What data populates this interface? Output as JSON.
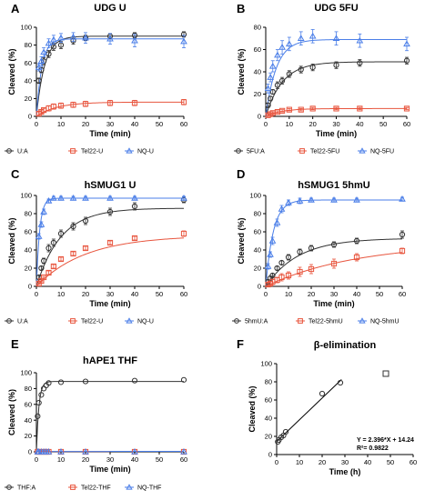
{
  "figure": {
    "panels": [
      {
        "letter": "A",
        "title": "UDG U",
        "xlabel": "Time (min)",
        "ylabel": "Cleaved (%)"
      },
      {
        "letter": "B",
        "title": "UDG 5FU",
        "xlabel": "Time (min)",
        "ylabel": "Cleaved (%)"
      },
      {
        "letter": "C",
        "title": "hSMUG1 U",
        "xlabel": "Time (min)",
        "ylabel": "Cleaved (%)"
      },
      {
        "letter": "D",
        "title": "hSMUG1 5hmU",
        "xlabel": "Time (min)",
        "ylabel": "Cleaved (%)"
      },
      {
        "letter": "E",
        "title": "hAPE1 THF",
        "xlabel": "Time (min)",
        "ylabel": "Cleaved (%)"
      },
      {
        "letter": "F",
        "title": "β-elimination",
        "xlabel": "Time (h)",
        "ylabel": "Cleaved (%)"
      }
    ]
  },
  "colors": {
    "black": "#333333",
    "red": "#e8553e",
    "blue": "#4a7ee8"
  },
  "chart_data": [
    {
      "panel": "A",
      "type": "scatter",
      "title": "UDG U",
      "xlabel": "Time (min)",
      "ylabel": "Cleaved (%)",
      "xlim": [
        0,
        60
      ],
      "ylim": [
        0,
        100
      ],
      "xticks": [
        0,
        10,
        20,
        30,
        40,
        50,
        60
      ],
      "yticks": [
        0,
        20,
        40,
        60,
        80,
        100
      ],
      "series": [
        {
          "name": "U:A",
          "marker": "circle",
          "color": "#333333",
          "x": [
            1,
            2,
            3,
            5,
            7,
            10,
            15,
            20,
            30,
            40,
            60
          ],
          "y": [
            40,
            52,
            62,
            70,
            78,
            80,
            85,
            88,
            90,
            91,
            92
          ],
          "err": [
            3,
            3,
            4,
            4,
            4,
            4,
            4,
            3,
            3,
            3,
            3
          ],
          "fit": {
            "plateau": 90,
            "k": 0.3
          }
        },
        {
          "name": "Tel22-U",
          "marker": "square",
          "color": "#e8553e",
          "x": [
            1,
            2,
            3,
            5,
            7,
            10,
            15,
            20,
            30,
            40,
            60
          ],
          "y": [
            3,
            5,
            7,
            9,
            11,
            12,
            13,
            14,
            15,
            15,
            16
          ],
          "err": [
            2,
            2,
            2,
            3,
            3,
            3,
            3,
            3,
            3,
            3,
            3
          ],
          "fit": {
            "plateau": 16,
            "k": 0.12
          }
        },
        {
          "name": "NQ-U",
          "marker": "triangle",
          "color": "#4a7ee8",
          "x": [
            1,
            2,
            3,
            5,
            7,
            10,
            15,
            20,
            30,
            40,
            60
          ],
          "y": [
            55,
            62,
            72,
            82,
            86,
            88,
            89,
            88,
            87,
            85,
            84
          ],
          "err": [
            4,
            5,
            5,
            5,
            5,
            5,
            5,
            6,
            6,
            7,
            7
          ],
          "fit": {
            "plateau": 87,
            "k": 0.45
          }
        }
      ],
      "legend": [
        "U:A",
        "Tel22-U",
        "NQ-U"
      ]
    },
    {
      "panel": "B",
      "type": "scatter",
      "title": "UDG 5FU",
      "xlabel": "Time (min)",
      "ylabel": "Cleaved (%)",
      "xlim": [
        0,
        60
      ],
      "ylim": [
        0,
        80
      ],
      "xticks": [
        0,
        10,
        20,
        30,
        40,
        50,
        60
      ],
      "yticks": [
        0,
        20,
        40,
        60,
        80
      ],
      "series": [
        {
          "name": "5FU:A",
          "marker": "circle",
          "color": "#333333",
          "x": [
            1,
            2,
            3,
            5,
            7,
            10,
            15,
            20,
            30,
            40,
            60
          ],
          "y": [
            10,
            16,
            22,
            28,
            32,
            38,
            42,
            44,
            46,
            48,
            50
          ],
          "err": [
            2,
            2,
            2,
            3,
            3,
            3,
            3,
            3,
            3,
            3,
            3
          ],
          "fit": {
            "plateau": 49,
            "k": 0.14
          }
        },
        {
          "name": "Tel22-5FU",
          "marker": "square",
          "color": "#e8553e",
          "x": [
            1,
            2,
            3,
            5,
            7,
            10,
            15,
            20,
            30,
            40,
            60
          ],
          "y": [
            1,
            2,
            3,
            4,
            5,
            6,
            6,
            7,
            7,
            7,
            7
          ],
          "err": [
            1,
            1,
            1,
            1,
            1,
            1,
            1,
            1,
            1,
            1,
            1
          ],
          "fit": {
            "plateau": 7,
            "k": 0.15
          }
        },
        {
          "name": "NQ-5FU",
          "marker": "triangle",
          "color": "#4a7ee8",
          "x": [
            1,
            2,
            3,
            5,
            7,
            10,
            15,
            20,
            30,
            40,
            60
          ],
          "y": [
            25,
            35,
            45,
            55,
            62,
            65,
            70,
            72,
            70,
            68,
            65
          ],
          "err": [
            4,
            4,
            5,
            5,
            6,
            6,
            6,
            6,
            6,
            6,
            6
          ],
          "fit": {
            "plateau": 69,
            "k": 0.22
          }
        }
      ],
      "legend": [
        "5FU:A",
        "Tel22-5FU",
        "NQ-5FU"
      ]
    },
    {
      "panel": "C",
      "type": "scatter",
      "title": "hSMUG1 U",
      "xlabel": "Time (min)",
      "ylabel": "Cleaved (%)",
      "xlim": [
        0,
        60
      ],
      "ylim": [
        0,
        100
      ],
      "xticks": [
        0,
        10,
        20,
        30,
        40,
        50,
        60
      ],
      "yticks": [
        0,
        20,
        40,
        60,
        80,
        100
      ],
      "series": [
        {
          "name": "U:A",
          "marker": "circle",
          "color": "#333333",
          "x": [
            1,
            2,
            3,
            5,
            7,
            10,
            15,
            20,
            30,
            40,
            60
          ],
          "y": [
            10,
            20,
            28,
            42,
            48,
            58,
            66,
            72,
            82,
            88,
            95
          ],
          "err": [
            2,
            2,
            3,
            4,
            4,
            4,
            4,
            4,
            4,
            4,
            3
          ],
          "fit": {
            "plateau": 86,
            "k": 0.1
          }
        },
        {
          "name": "Tel22-U",
          "marker": "square",
          "color": "#e8553e",
          "x": [
            1,
            2,
            3,
            5,
            7,
            10,
            15,
            20,
            30,
            40,
            60
          ],
          "y": [
            3,
            6,
            10,
            15,
            22,
            30,
            36,
            42,
            48,
            53,
            58
          ],
          "err": [
            1,
            1,
            1,
            2,
            2,
            2,
            2,
            2,
            2,
            2,
            3
          ],
          "fit": {
            "plateau": 56,
            "k": 0.05
          }
        },
        {
          "name": "NQ-U",
          "marker": "triangle",
          "color": "#4a7ee8",
          "x": [
            1,
            2,
            3,
            5,
            7,
            10,
            15,
            20,
            30,
            40,
            60
          ],
          "y": [
            55,
            68,
            82,
            94,
            97,
            97,
            97,
            97,
            97,
            97,
            97
          ],
          "err": [
            3,
            3,
            3,
            2,
            2,
            2,
            2,
            2,
            2,
            2,
            2
          ],
          "fit": {
            "plateau": 97,
            "k": 0.75
          }
        }
      ],
      "legend": [
        "U:A",
        "Tel22-U",
        "NQ-U"
      ]
    },
    {
      "panel": "D",
      "type": "scatter",
      "title": "hSMUG1 5hmU",
      "xlabel": "Time (min)",
      "ylabel": "Cleaved (%)",
      "xlim": [
        0,
        60
      ],
      "ylim": [
        0,
        100
      ],
      "xticks": [
        0,
        10,
        20,
        30,
        40,
        50,
        60
      ],
      "yticks": [
        0,
        20,
        40,
        60,
        80,
        100
      ],
      "series": [
        {
          "name": "5hmU:A",
          "marker": "circle",
          "color": "#333333",
          "x": [
            1,
            2,
            3,
            5,
            7,
            10,
            15,
            20,
            30,
            40,
            60
          ],
          "y": [
            5,
            9,
            12,
            20,
            26,
            32,
            38,
            42,
            46,
            50,
            57
          ],
          "err": [
            2,
            2,
            2,
            2,
            2,
            3,
            3,
            3,
            3,
            3,
            4
          ],
          "fit": {
            "plateau": 53,
            "k": 0.07
          }
        },
        {
          "name": "Tel22-5hmU",
          "marker": "square",
          "color": "#e8553e",
          "x": [
            1,
            2,
            3,
            5,
            7,
            10,
            15,
            20,
            30,
            40,
            60
          ],
          "y": [
            2,
            3,
            5,
            7,
            10,
            12,
            16,
            19,
            25,
            32,
            39
          ],
          "err": [
            2,
            2,
            3,
            3,
            4,
            4,
            5,
            5,
            5,
            4,
            3
          ],
          "fit": {
            "plateau": 48,
            "k": 0.025
          }
        },
        {
          "name": "NQ-5hmU",
          "marker": "triangle",
          "color": "#4a7ee8",
          "x": [
            1,
            2,
            3,
            5,
            7,
            10,
            15,
            20,
            30,
            40,
            60
          ],
          "y": [
            22,
            35,
            50,
            70,
            85,
            92,
            94,
            95,
            95,
            95,
            96
          ],
          "err": [
            3,
            3,
            4,
            4,
            4,
            3,
            3,
            2,
            2,
            2,
            2
          ],
          "fit": {
            "plateau": 95,
            "k": 0.3
          }
        }
      ],
      "legend": [
        "5hmU:A",
        "Tel22-5hmU",
        "NQ-5hmU"
      ]
    },
    {
      "panel": "E",
      "type": "scatter",
      "title": "hAPE1 THF",
      "xlabel": "Time (min)",
      "ylabel": "Cleaved (%)",
      "xlim": [
        0,
        60
      ],
      "ylim": [
        0,
        100
      ],
      "xticks": [
        0,
        10,
        20,
        30,
        40,
        50,
        60
      ],
      "yticks": [
        0,
        20,
        40,
        60,
        80,
        100
      ],
      "series": [
        {
          "name": "THF:A",
          "marker": "circle",
          "color": "#333333",
          "x": [
            0.5,
            1,
            2,
            3,
            4,
            5,
            10,
            20,
            40,
            60
          ],
          "y": [
            45,
            62,
            72,
            80,
            84,
            87,
            88,
            89,
            90,
            91
          ],
          "err": [
            0,
            0,
            0,
            0,
            0,
            0,
            0,
            0,
            0,
            0
          ],
          "fit": {
            "plateau": 89,
            "k": 1.0
          }
        },
        {
          "name": "Tel22-THF",
          "marker": "square",
          "color": "#e8553e",
          "x": [
            0.5,
            1,
            2,
            3,
            4,
            5,
            10,
            20,
            40,
            60
          ],
          "y": [
            0,
            0,
            0,
            0,
            0,
            0,
            0,
            0,
            0,
            0
          ],
          "err": [
            0,
            0,
            0,
            0,
            0,
            0,
            0,
            0,
            0,
            0
          ],
          "fit": {
            "plateau": 0.5,
            "k": 1.0
          }
        },
        {
          "name": "NQ-THF",
          "marker": "triangle",
          "color": "#4a7ee8",
          "x": [
            0.5,
            1,
            2,
            3,
            4,
            5,
            10,
            20,
            40,
            60
          ],
          "y": [
            0,
            0,
            0,
            0,
            0,
            0,
            0,
            0,
            0,
            0
          ],
          "err": [
            0,
            0,
            0,
            0,
            0,
            0,
            0,
            0,
            0,
            0
          ],
          "fit": {
            "plateau": 0.5,
            "k": 1.0
          }
        }
      ],
      "legend": [
        "THF:A",
        "Tel22-THF",
        "NQ-THF"
      ]
    },
    {
      "panel": "F",
      "type": "scatter",
      "title": "β-elimination",
      "xlabel": "Time (h)",
      "ylabel": "Cleaved (%)",
      "xlim": [
        0,
        60
      ],
      "ylim": [
        0,
        100
      ],
      "xticks": [
        0,
        10,
        20,
        30,
        40,
        50,
        60
      ],
      "yticks": [
        0,
        20,
        40,
        60,
        80,
        100
      ],
      "series": [
        {
          "marker": "circle",
          "color": "#333333",
          "x": [
            0.5,
            1,
            2,
            3,
            4,
            20,
            28
          ],
          "y": [
            14,
            16,
            19,
            21,
            25,
            67,
            79
          ],
          "err": [
            0,
            0,
            0,
            0,
            0,
            0,
            0
          ]
        },
        {
          "marker": "square",
          "color": "#333333",
          "x": [
            48
          ],
          "y": [
            89
          ],
          "err": [
            0
          ]
        }
      ],
      "regression": {
        "slope": 2.396,
        "intercept": 14.24,
        "xrange": [
          0,
          28.5
        ],
        "equation_text": "Y = 2.396*X + 14.24",
        "r2_text": "R²= 0.9822"
      }
    }
  ]
}
